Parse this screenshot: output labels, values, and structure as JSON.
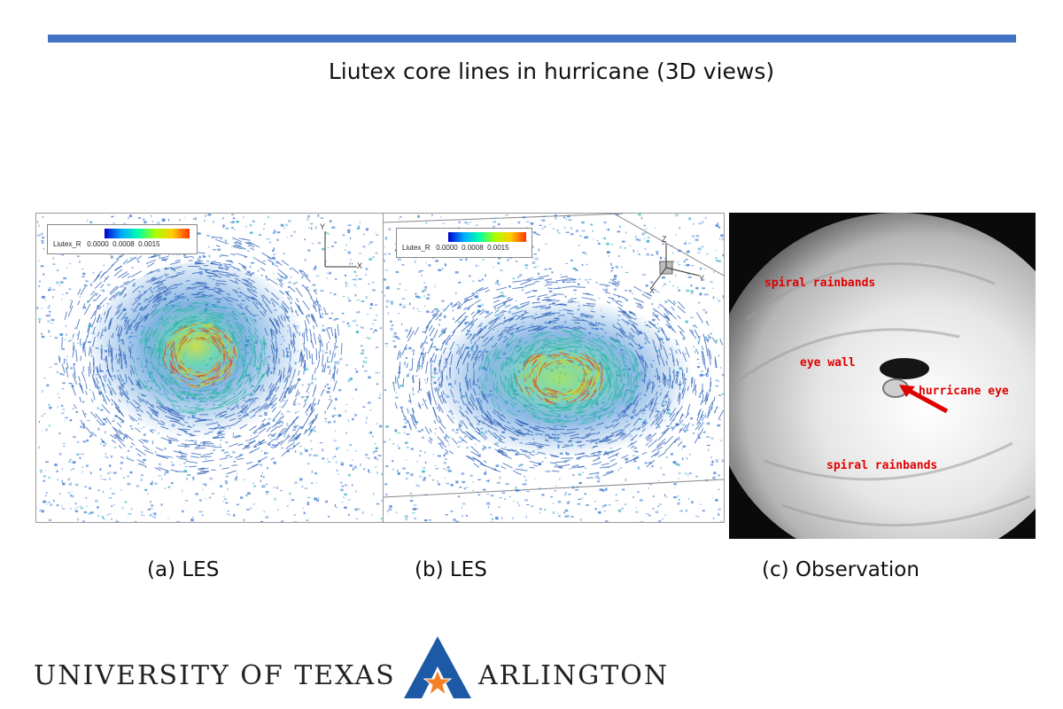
{
  "slide": {
    "title": "Liutex core lines in hurricane (3D views)"
  },
  "panels": [
    {
      "caption": "(a) LES",
      "legend": {
        "variable": "Liutex_R",
        "ticks": [
          "0.0000",
          "0.0008",
          "0.0015"
        ]
      },
      "axes": {
        "y": "Y",
        "x": "X"
      }
    },
    {
      "caption": "(b) LES",
      "legend": {
        "variable": "Liutex_R",
        "ticks": [
          "0.0000",
          "0.0008",
          "0.0015"
        ]
      },
      "axes": {
        "z": "Z",
        "x": "X",
        "y": "Y"
      }
    },
    {
      "caption": "(c) Observation",
      "labels": {
        "spiral_top": "spiral rainbands",
        "eye_wall": "eye wall",
        "eye": "hurricane eye",
        "spiral_bottom": "spiral rainbands"
      }
    }
  ],
  "logo": {
    "left_text": "UNIVERSITY OF TEXAS",
    "right_text": "ARLINGTON",
    "colors": {
      "blue": "#1c5aa6",
      "orange": "#f58025"
    }
  },
  "colors": {
    "rule": "#4472c4",
    "label_red": "#e00000"
  }
}
